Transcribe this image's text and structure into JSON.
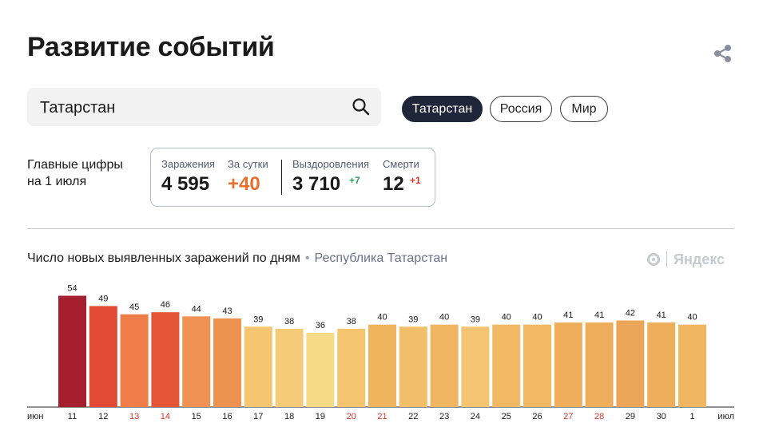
{
  "header": {
    "title": "Развитие событий",
    "share_icon": "share-icon"
  },
  "search": {
    "value": "Татарстан",
    "placeholder": "",
    "icon": "search-icon"
  },
  "regions": [
    {
      "label": "Татарстан",
      "active": true
    },
    {
      "label": "Россия",
      "active": false
    },
    {
      "label": "Мир",
      "active": false
    }
  ],
  "key_figures": {
    "label_line1": "Главные цифры",
    "label_line2": "на 1 июля",
    "infections_label": "Заражения",
    "infections_value": "4 595",
    "daily_label": "За сутки",
    "daily_value": "+40",
    "recoveries_label": "Выздоровления",
    "recoveries_value": "3 710",
    "recoveries_delta": "+7",
    "deaths_label": "Смерти",
    "deaths_value": "12",
    "deaths_delta": "+1"
  },
  "chart_header": {
    "title": "Число новых выявленных заражений по дням",
    "separator": "•",
    "region": "Республика Татарстан",
    "brand": "Яндекс"
  },
  "colors": {
    "accent_dark": "#20263a",
    "orange": "#e8702a",
    "green": "#2f9e55",
    "red": "#d6352b",
    "weekend_tick": "#d6352b"
  },
  "chart_data": {
    "type": "bar",
    "title": "Число новых выявленных заражений по дням",
    "subtitle": "Республика Татарстан",
    "xlabel": "",
    "ylabel": "",
    "month_start": "июн",
    "month_end": "июл",
    "categories": [
      "11",
      "12",
      "13",
      "14",
      "15",
      "16",
      "17",
      "18",
      "19",
      "20",
      "21",
      "22",
      "23",
      "24",
      "25",
      "26",
      "27",
      "28",
      "29",
      "30",
      "1"
    ],
    "values": [
      54,
      49,
      45,
      46,
      44,
      43,
      39,
      38,
      36,
      38,
      40,
      39,
      40,
      39,
      40,
      40,
      41,
      41,
      42,
      41,
      40
    ],
    "weekend": [
      false,
      false,
      true,
      true,
      false,
      false,
      false,
      false,
      false,
      true,
      true,
      false,
      false,
      false,
      false,
      false,
      true,
      true,
      false,
      false,
      false
    ],
    "bar_colors": [
      "#a51f2e",
      "#e24a35",
      "#ef7d4a",
      "#e55538",
      "#ef9254",
      "#ec9352",
      "#f5c56f",
      "#f5cb79",
      "#f7da86",
      "#f5c46f",
      "#f0b45e",
      "#f3be6a",
      "#f0b560",
      "#f4c473",
      "#f1b964",
      "#f1b964",
      "#efae5b",
      "#efae5b",
      "#eca659",
      "#efae5b",
      "#f0b560"
    ],
    "ylim": [
      0,
      60
    ],
    "grid": false,
    "data_labels": true
  }
}
